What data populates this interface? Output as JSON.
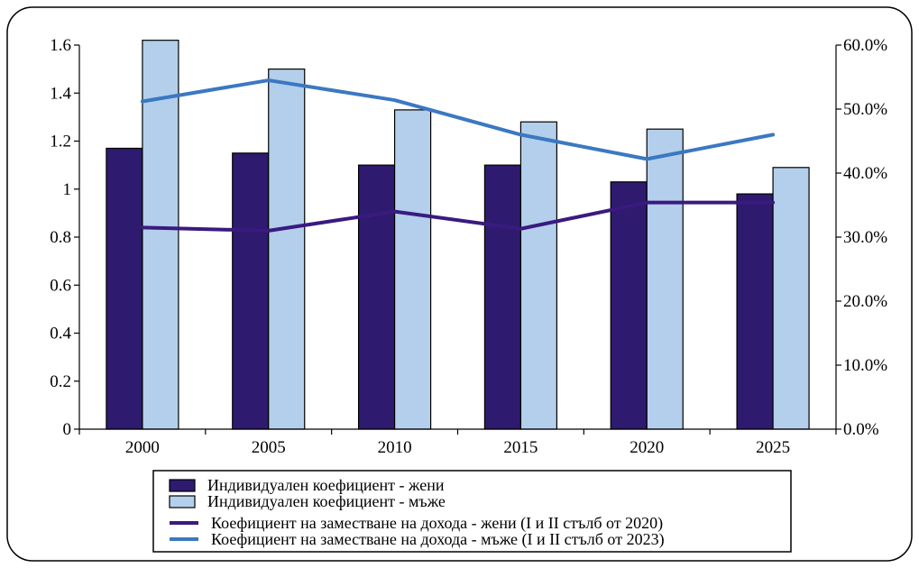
{
  "chart_data": {
    "type": "bar",
    "categories": [
      "2000",
      "2005",
      "2010",
      "2015",
      "2020",
      "2025"
    ],
    "series": [
      {
        "name": "Индивидуален коефициент - жени",
        "kind": "bar",
        "axis": "left",
        "color": "#2e1a6e",
        "values": [
          1.17,
          1.15,
          1.1,
          1.1,
          1.03,
          0.98
        ]
      },
      {
        "name": "Индивидуален коефициент - мъже",
        "kind": "bar",
        "axis": "left",
        "color": "#b3cfeb",
        "values": [
          1.62,
          1.5,
          1.33,
          1.28,
          1.25,
          1.09
        ]
      },
      {
        "name": "Коефициент на заместване на дохода - жени (I и II стълб от 2020)",
        "kind": "line",
        "axis": "right",
        "color": "#3a1a80",
        "values": [
          0.315,
          0.31,
          0.34,
          0.313,
          0.354,
          0.354
        ]
      },
      {
        "name": "Коефициент на заместване на дохода - мъже (I и II стълб от 2023)",
        "kind": "line",
        "axis": "right",
        "color": "#3b78c2",
        "values": [
          0.512,
          0.545,
          0.514,
          0.46,
          0.422,
          0.46
        ]
      }
    ],
    "y_left": {
      "min": 0,
      "max": 1.6,
      "ticks": [
        "0",
        "0.2",
        "0.4",
        "0.6",
        "0.8",
        "1",
        "1.2",
        "1.4",
        "1.6"
      ]
    },
    "y_right": {
      "min": 0,
      "max": 0.6,
      "ticks": [
        "0.0%",
        "10.0%",
        "20.0%",
        "30.0%",
        "40.0%",
        "50.0%",
        "60.0%"
      ]
    },
    "legend_position": "bottom",
    "grid": false
  }
}
